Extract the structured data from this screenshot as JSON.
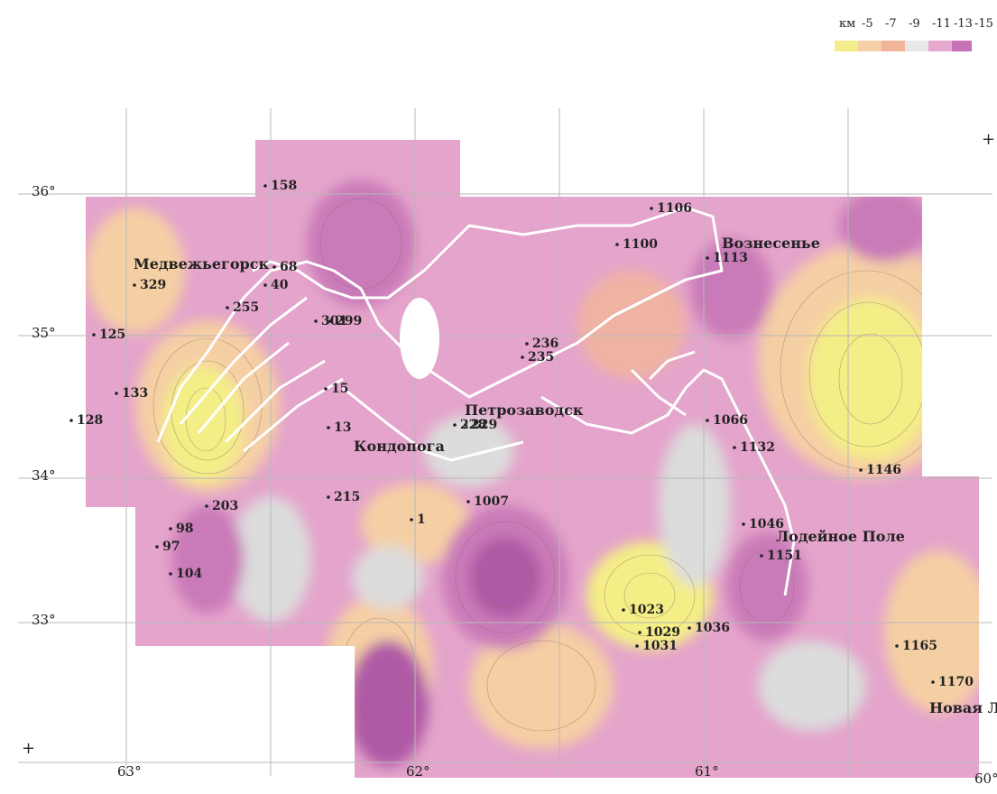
{
  "legend": {
    "unit": "км",
    "ticks": [
      "-5",
      "-7",
      "-9",
      "-11",
      "-13",
      "-15"
    ],
    "colors": [
      "#f2ec8a",
      "#f6d0a6",
      "#f0b49a",
      "#e8e8e8",
      "#e6a9cf",
      "#c873b8"
    ]
  },
  "colors": {
    "yellow": "#f4ee86",
    "peach": "#f5cfa4",
    "salmon": "#efb3a3",
    "grey": "#dcdcdc",
    "pink": "#e4a4cb",
    "magenta": "#c97ab8",
    "deep": "#b05aa6",
    "lake": "#ffffff",
    "grid": "#b8b8b8"
  },
  "axes": {
    "longitude_labels": [
      "33°",
      "34°",
      "35°",
      "36°"
    ],
    "latitude_labels": [
      "63°",
      "62°",
      "61°",
      "60°"
    ]
  },
  "towns": [
    "Медвежьегорск",
    "Кондопога",
    "Петрозаводск",
    "Вознесенье",
    "Лодейное Поле",
    "Новая Ладога"
  ],
  "stations": [
    "128",
    "125",
    "133",
    "329",
    "40",
    "68",
    "255",
    "301",
    "299",
    "15",
    "13",
    "228",
    "229",
    "235",
    "236",
    "1100",
    "1106",
    "1113",
    "1066",
    "1132",
    "1046",
    "1151",
    "1146",
    "1007",
    "1",
    "215",
    "203",
    "97",
    "98",
    "104",
    "1023",
    "1029",
    "1031",
    "1036",
    "1165",
    "1170",
    "158"
  ],
  "grid_marker": "+"
}
